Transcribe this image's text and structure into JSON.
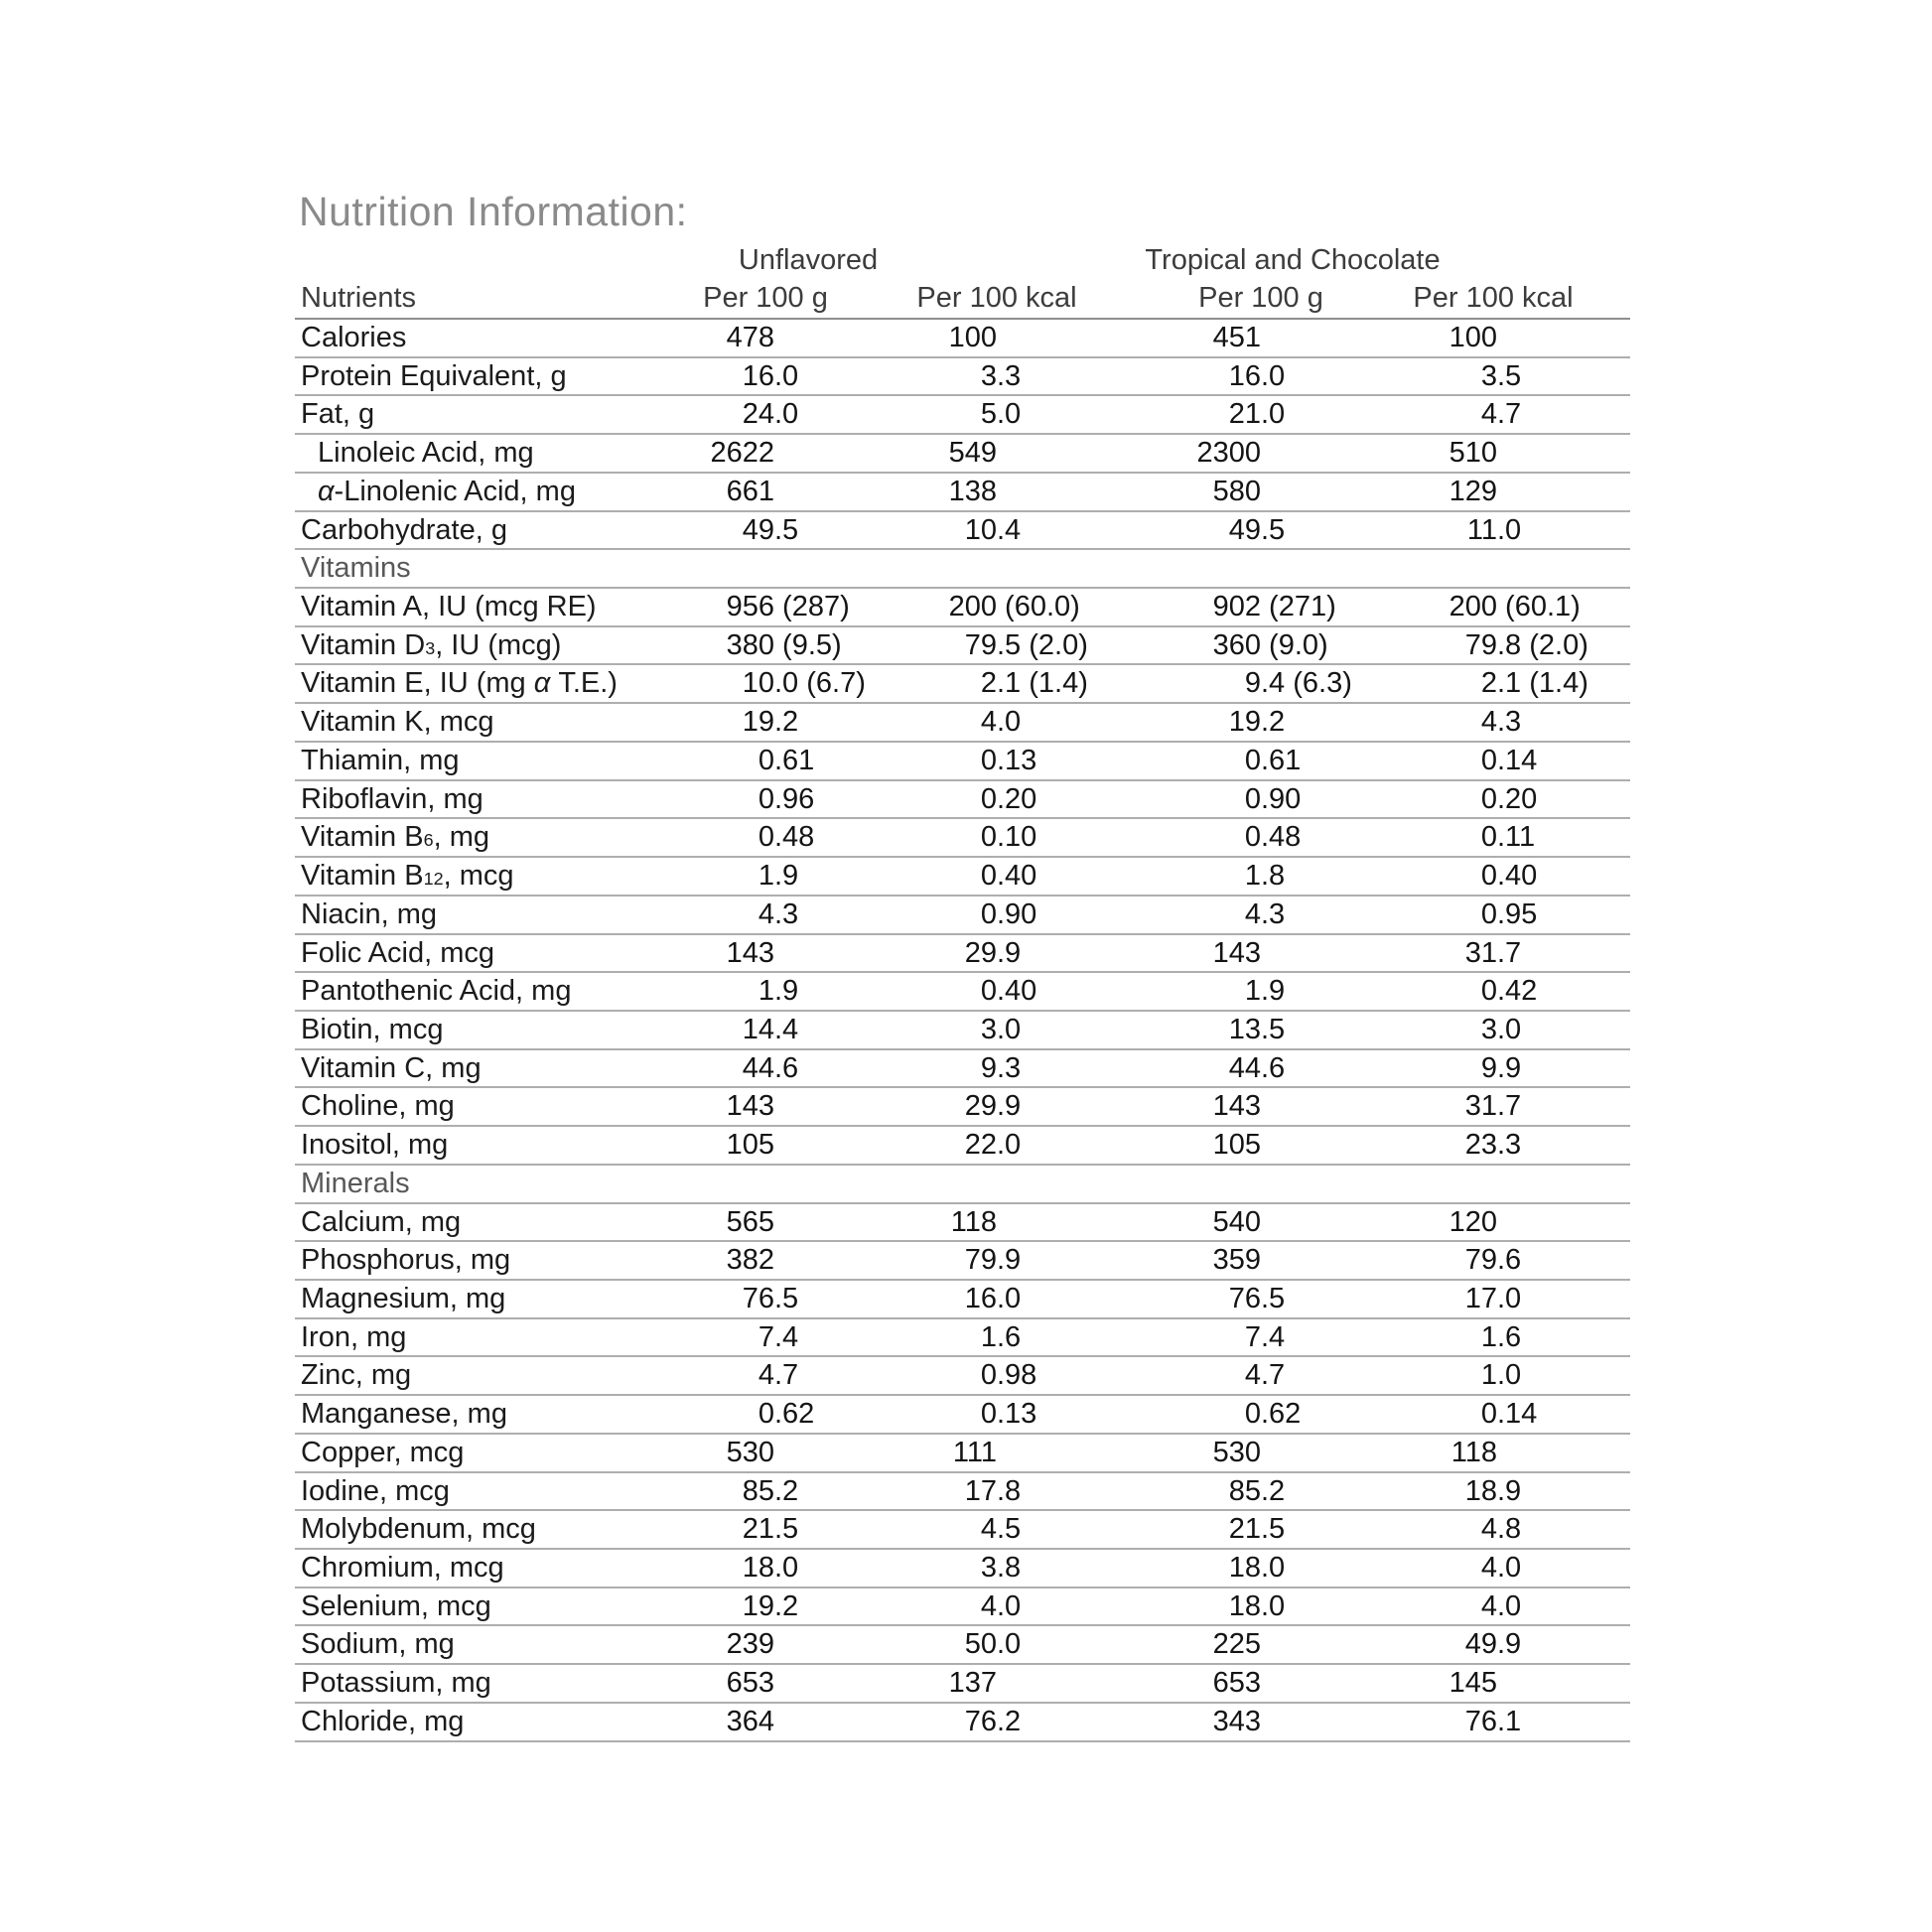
{
  "title": "Nutrition Information:",
  "table": {
    "group_headers": [
      "Unflavored",
      "Tropical and Chocolate"
    ],
    "column_headers": [
      "Nutrients",
      "Per 100 g",
      "Per 100 kcal",
      "Per 100 g",
      "Per 100 kcal"
    ],
    "rows": [
      {
        "label": "Calories",
        "values": [
          "478",
          "100",
          "451",
          "100"
        ]
      },
      {
        "label": "Protein Equivalent, g",
        "values": [
          "16.0",
          "3.3",
          "16.0",
          "3.5"
        ]
      },
      {
        "label": "Fat, g",
        "values": [
          "24.0",
          "5.0",
          "21.0",
          "4.7"
        ]
      },
      {
        "label": "Linoleic Acid, mg",
        "indent": true,
        "values": [
          "2622",
          "549",
          "2300",
          "510"
        ]
      },
      {
        "label": "α-Linolenic Acid, mg",
        "indent": true,
        "values": [
          "661",
          "138",
          "580",
          "129"
        ]
      },
      {
        "label": "Carbohydrate, g",
        "values": [
          "49.5",
          "10.4",
          "49.5",
          "11.0"
        ]
      },
      {
        "label": "Vitamins",
        "section": true
      },
      {
        "label": "Vitamin A, IU (mcg RE)",
        "values": [
          "956 (287)",
          "200 (60.0)",
          "902 (271)",
          "200 (60.1)"
        ]
      },
      {
        "label": "Vitamin D~3~, IU (mcg)",
        "values": [
          "380 (9.5)",
          "79.5 (2.0)",
          "360 (9.0)",
          "79.8 (2.0)"
        ]
      },
      {
        "label": "Vitamin E, IU (mg α T.E.)",
        "values": [
          "10.0 (6.7)",
          "2.1 (1.4)",
          "9.4 (6.3)",
          "2.1 (1.4)"
        ]
      },
      {
        "label": "Vitamin K, mcg",
        "values": [
          "19.2",
          "4.0",
          "19.2",
          "4.3"
        ]
      },
      {
        "label": "Thiamin, mg",
        "values": [
          "0.61",
          "0.13",
          "0.61",
          "0.14"
        ]
      },
      {
        "label": "Riboflavin, mg",
        "values": [
          "0.96",
          "0.20",
          "0.90",
          "0.20"
        ]
      },
      {
        "label": "Vitamin B~6~, mg",
        "values": [
          "0.48",
          "0.10",
          "0.48",
          "0.11"
        ]
      },
      {
        "label": "Vitamin B~12~, mcg",
        "values": [
          "1.9",
          "0.40",
          "1.8",
          "0.40"
        ]
      },
      {
        "label": "Niacin, mg",
        "values": [
          "4.3",
          "0.90",
          "4.3",
          "0.95"
        ]
      },
      {
        "label": "Folic Acid, mcg",
        "values": [
          "143",
          "29.9",
          "143",
          "31.7"
        ]
      },
      {
        "label": "Pantothenic Acid, mg",
        "values": [
          "1.9",
          "0.40",
          "1.9",
          "0.42"
        ]
      },
      {
        "label": "Biotin, mcg",
        "values": [
          "14.4",
          "3.0",
          "13.5",
          "3.0"
        ]
      },
      {
        "label": "Vitamin C, mg",
        "values": [
          "44.6",
          "9.3",
          "44.6",
          "9.9"
        ]
      },
      {
        "label": "Choline, mg",
        "values": [
          "143",
          "29.9",
          "143",
          "31.7"
        ]
      },
      {
        "label": "Inositol, mg",
        "values": [
          "105",
          "22.0",
          "105",
          "23.3"
        ]
      },
      {
        "label": "Minerals",
        "section": true
      },
      {
        "label": "Calcium, mg",
        "values": [
          "565",
          "118",
          "540",
          "120"
        ]
      },
      {
        "label": "Phosphorus, mg",
        "values": [
          "382",
          "79.9",
          "359",
          "79.6"
        ]
      },
      {
        "label": "Magnesium, mg",
        "values": [
          "76.5",
          "16.0",
          "76.5",
          "17.0"
        ]
      },
      {
        "label": "Iron, mg",
        "values": [
          "7.4",
          "1.6",
          "7.4",
          "1.6"
        ]
      },
      {
        "label": "Zinc, mg",
        "values": [
          "4.7",
          "0.98",
          "4.7",
          "1.0"
        ]
      },
      {
        "label": "Manganese, mg",
        "values": [
          "0.62",
          "0.13",
          "0.62",
          "0.14"
        ]
      },
      {
        "label": "Copper, mcg",
        "values": [
          "530",
          "111",
          "530",
          "118"
        ]
      },
      {
        "label": "Iodine, mcg",
        "values": [
          "85.2",
          "17.8",
          "85.2",
          "18.9"
        ]
      },
      {
        "label": "Molybdenum, mcg",
        "values": [
          "21.5",
          "4.5",
          "21.5",
          "4.8"
        ]
      },
      {
        "label": "Chromium, mcg",
        "values": [
          "18.0",
          "3.8",
          "18.0",
          "4.0"
        ]
      },
      {
        "label": "Selenium, mcg",
        "values": [
          "19.2",
          "4.0",
          "18.0",
          "4.0"
        ]
      },
      {
        "label": "Sodium, mg",
        "values": [
          "239",
          "50.0",
          "225",
          "49.9"
        ]
      },
      {
        "label": "Potassium, mg",
        "values": [
          "653",
          "137",
          "653",
          "145"
        ]
      },
      {
        "label": "Chloride, mg",
        "values": [
          "364",
          "76.2",
          "343",
          "76.1"
        ]
      }
    ]
  },
  "colors": {
    "background": "#ffffff",
    "title_gray": "#8a8a8a",
    "section_header_gray": "#585858",
    "column_header_text": "#3c3c3c",
    "body_text": "#1b1b1b",
    "header_rule": "#8e8e8e",
    "row_rule": "#aeaeae"
  }
}
